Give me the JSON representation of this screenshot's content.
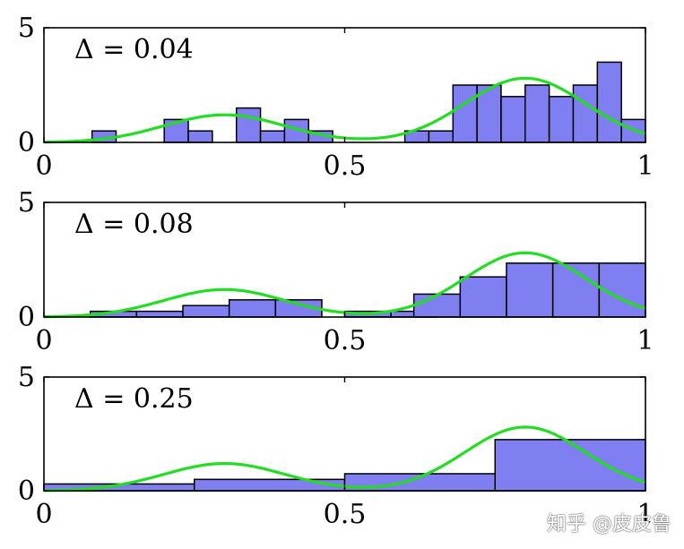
{
  "colors": {
    "bar_fill": "#7f7ff2",
    "bar_edge": "#000000",
    "curve": "#22dd22",
    "axis": "#000000"
  },
  "watermark": "知乎 @皮皮鲁",
  "chart_data": [
    {
      "type": "bar",
      "annotation": "Δ = 0.04",
      "xlim": [
        0,
        1
      ],
      "ylim": [
        0,
        5
      ],
      "xticks": [
        "0",
        "0.5",
        "1"
      ],
      "yticks": [
        "0",
        "5"
      ],
      "bin_width": 0.04,
      "bins": [
        {
          "x0": 0.08,
          "h": 0.5
        },
        {
          "x0": 0.2,
          "h": 1
        },
        {
          "x0": 0.24,
          "h": 0.5
        },
        {
          "x0": 0.32,
          "h": 1.5
        },
        {
          "x0": 0.36,
          "h": 0.5
        },
        {
          "x0": 0.4,
          "h": 1
        },
        {
          "x0": 0.44,
          "h": 0.5
        },
        {
          "x0": 0.6,
          "h": 0.5
        },
        {
          "x0": 0.64,
          "h": 0.5
        },
        {
          "x0": 0.68,
          "h": 2.5
        },
        {
          "x0": 0.72,
          "h": 2.5
        },
        {
          "x0": 0.76,
          "h": 2
        },
        {
          "x0": 0.8,
          "h": 2.5
        },
        {
          "x0": 0.84,
          "h": 2
        },
        {
          "x0": 0.88,
          "h": 2.5
        },
        {
          "x0": 0.92,
          "h": 3.5
        },
        {
          "x0": 0.96,
          "h": 1
        }
      ],
      "curve": {
        "peaks": [
          {
            "mu": 0.3,
            "sigma": 0.1,
            "height": 1.2
          },
          {
            "mu": 0.8,
            "sigma": 0.1,
            "height": 2.8
          }
        ]
      }
    },
    {
      "type": "bar",
      "annotation": "Δ = 0.08",
      "xlim": [
        0,
        1
      ],
      "ylim": [
        0,
        5
      ],
      "xticks": [
        "0",
        "0.5",
        "1"
      ],
      "yticks": [
        "0",
        "5"
      ],
      "bin_width": 0.077,
      "bins": [
        {
          "x0": 0.077,
          "h": 0.25
        },
        {
          "x0": 0.154,
          "h": 0.25
        },
        {
          "x0": 0.231,
          "h": 0.5
        },
        {
          "x0": 0.308,
          "h": 0.75
        },
        {
          "x0": 0.385,
          "h": 0.75
        },
        {
          "x0": 0.5,
          "h": 0.25
        },
        {
          "x0": 0.577,
          "h": 0.25
        },
        {
          "x0": 0.615,
          "h": 1.0
        },
        {
          "x0": 0.692,
          "h": 1.75
        },
        {
          "x0": 0.769,
          "h": 2.35
        },
        {
          "x0": 0.846,
          "h": 2.35
        },
        {
          "x0": 0.923,
          "h": 2.35
        }
      ],
      "curve": {
        "peaks": [
          {
            "mu": 0.3,
            "sigma": 0.1,
            "height": 1.2
          },
          {
            "mu": 0.8,
            "sigma": 0.1,
            "height": 2.8
          }
        ]
      }
    },
    {
      "type": "bar",
      "annotation": "Δ = 0.25",
      "xlim": [
        0,
        1
      ],
      "ylim": [
        0,
        5
      ],
      "xticks": [
        "0",
        "0.5",
        "1"
      ],
      "yticks": [
        "0",
        "5"
      ],
      "bin_width": 0.25,
      "bins": [
        {
          "x0": 0.0,
          "h": 0.3
        },
        {
          "x0": 0.25,
          "h": 0.5
        },
        {
          "x0": 0.5,
          "h": 0.75
        },
        {
          "x0": 0.75,
          "h": 2.25
        }
      ],
      "curve": {
        "peaks": [
          {
            "mu": 0.3,
            "sigma": 0.1,
            "height": 1.2
          },
          {
            "mu": 0.8,
            "sigma": 0.1,
            "height": 2.8
          }
        ]
      }
    }
  ]
}
